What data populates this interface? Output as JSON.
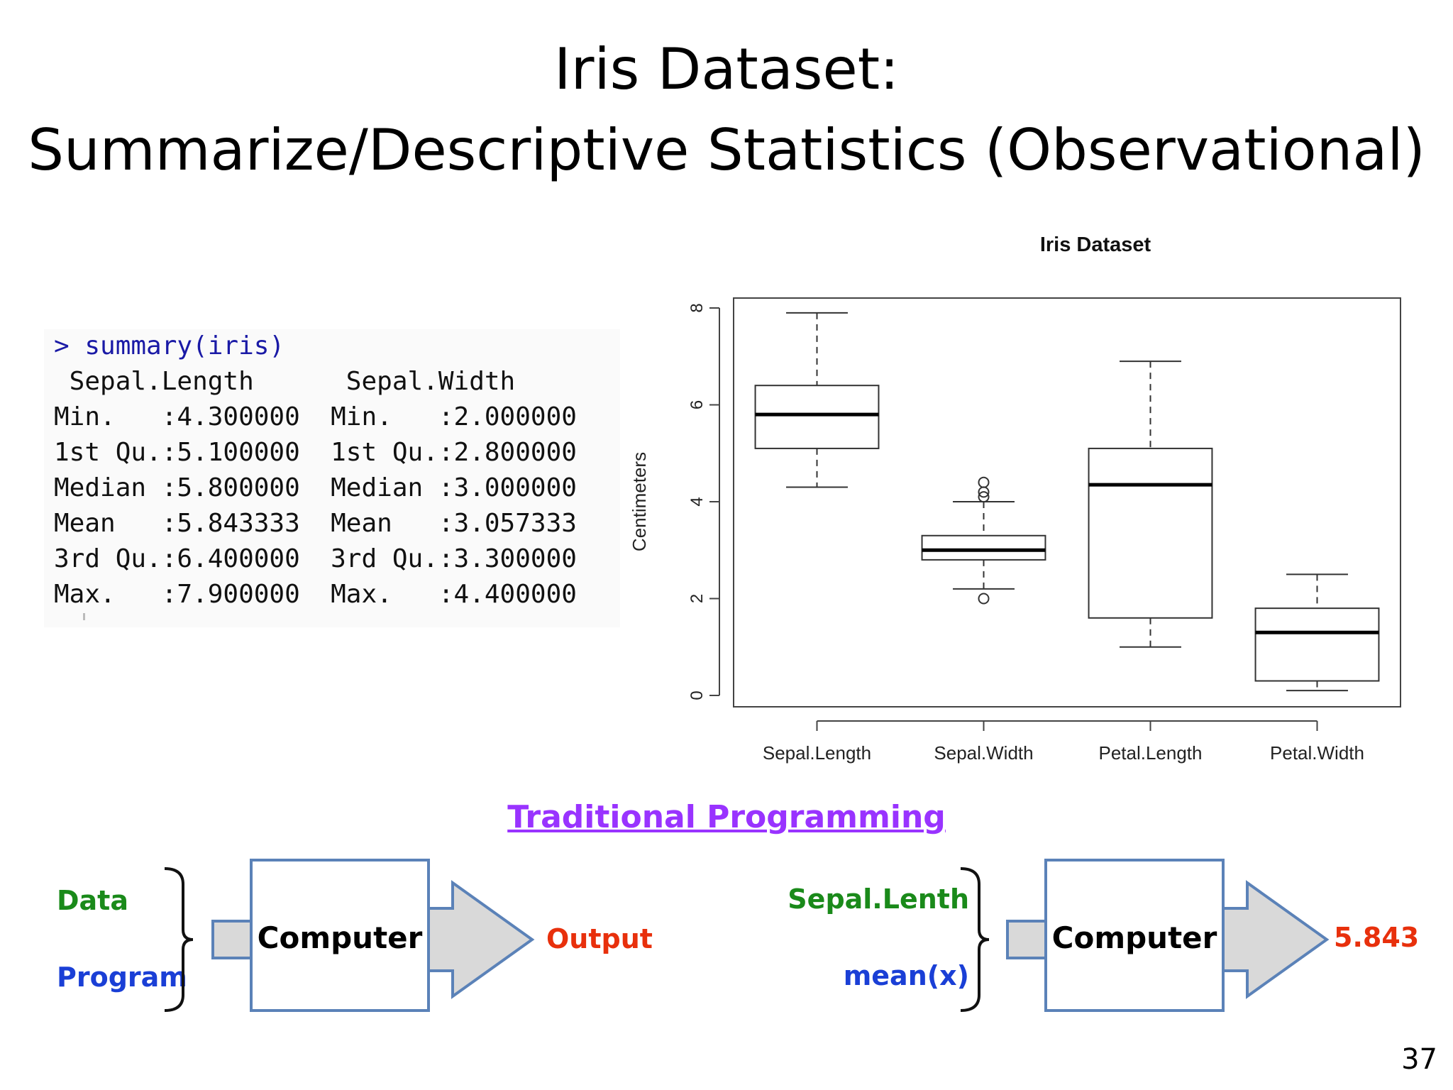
{
  "slide": {
    "title_line1": "Iris Dataset:",
    "title_line2": "Summarize/Descriptive Statistics (Observational)",
    "page_number": "37"
  },
  "console": {
    "lines": [
      "> summary(iris)",
      " Sepal.Length      Sepal.Width",
      "Min.   :4.300000  Min.   :2.000000",
      "1st Qu.:5.100000  1st Qu.:2.800000",
      "Median :5.800000  Median :3.000000",
      "Mean   :5.843333  Mean   :3.057333",
      "3rd Qu.:6.400000  3rd Qu.:3.300000",
      "Max.   :7.900000  Max.   :4.400000"
    ],
    "command_color": "#1a1aa6"
  },
  "chart_data": {
    "type": "boxplot",
    "title": "Iris Dataset",
    "xlabel": "",
    "ylabel": "Centimeters",
    "ylim": [
      0,
      8
    ],
    "yticks": [
      "0",
      "2",
      "4",
      "6",
      "8"
    ],
    "categories": [
      "Sepal.Length",
      "Sepal.Width",
      "Petal.Length",
      "Petal.Width"
    ],
    "boxes": [
      {
        "whisker_low": 4.3,
        "q1": 5.1,
        "median": 5.8,
        "q3": 6.4,
        "whisker_high": 7.9,
        "outliers": []
      },
      {
        "whisker_low": 2.2,
        "q1": 2.8,
        "median": 3.0,
        "q3": 3.3,
        "whisker_high": 4.0,
        "outliers": [
          2.0,
          4.1,
          4.2,
          4.4
        ]
      },
      {
        "whisker_low": 1.0,
        "q1": 1.6,
        "median": 4.35,
        "q3": 5.1,
        "whisker_high": 6.9,
        "outliers": []
      },
      {
        "whisker_low": 0.1,
        "q1": 0.3,
        "median": 1.3,
        "q3": 1.8,
        "whisker_high": 2.5,
        "outliers": []
      }
    ],
    "grid": false,
    "legend": "none"
  },
  "traditional_programming": {
    "heading": "Traditional Programming",
    "left": {
      "input_top": "Data",
      "input_bottom": "Program",
      "box_label": "Computer",
      "output": "Output"
    },
    "right": {
      "input_top": "Sepal.Lenth",
      "input_bottom": "mean(x)",
      "box_label": "Computer",
      "output": "5.843"
    },
    "colors": {
      "green": "#1a8a1a",
      "blue": "#1a3fd6",
      "red": "#e8300c",
      "purple": "#9933ff",
      "box_border": "#5b82b8",
      "arrow_fill": "#d9d9d9"
    }
  }
}
